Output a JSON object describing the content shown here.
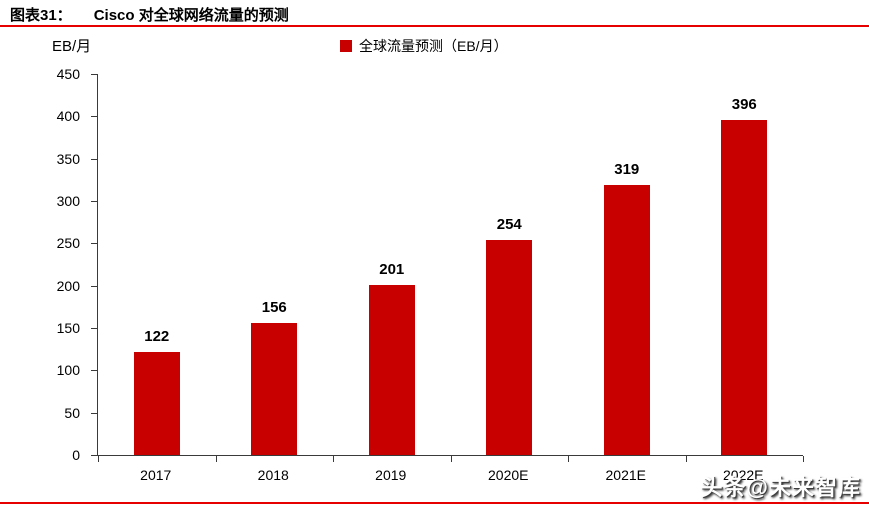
{
  "header": {
    "label": "图表31：",
    "title": "Cisco 对全球网络流量的预测"
  },
  "watermark": "头条@未来智库",
  "colors": {
    "bar": "#C80000",
    "accent_rule": "#E60000",
    "axis": "#3a3a3a"
  },
  "chart_data": {
    "type": "bar",
    "title": "Cisco 对全球网络流量的预测",
    "unit_label": "EB/月",
    "xlabel": "",
    "ylabel": "EB/月",
    "categories": [
      "2017",
      "2018",
      "2019",
      "2020E",
      "2021E",
      "2022E"
    ],
    "values": [
      122,
      156,
      201,
      254,
      319,
      396
    ],
    "ylim": [
      0,
      450
    ],
    "yticks": [
      0,
      50,
      100,
      150,
      200,
      250,
      300,
      350,
      400,
      450
    ],
    "grid": false,
    "bar_color": "#C80000",
    "legend": {
      "label": "全球流量预测（EB/月）",
      "position": "top"
    }
  }
}
